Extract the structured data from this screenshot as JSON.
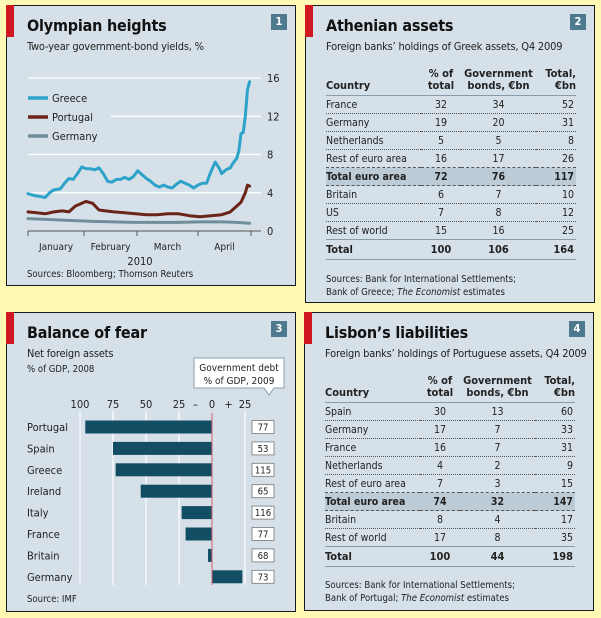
{
  "chart_data": [
    {
      "type": "line",
      "number": "1",
      "title": "Olympian heights",
      "subtitle": "Two-year government-bond yields, %",
      "xlabel": "2010",
      "x_tick_labels": [
        "January",
        "February",
        "March",
        "April"
      ],
      "y_ticks": [
        0,
        4,
        8,
        12,
        16
      ],
      "ylim": [
        0,
        16
      ],
      "grid": true,
      "legend": "top-left",
      "source": "Sources: Bloomberg; Thomson Reuters",
      "x_note": "approximate daily observations, Jan 1 to late April 2010 (index 0-100)",
      "series": [
        {
          "name": "Greece",
          "color": "#2ea3c9",
          "points": [
            [
              0,
              3.9
            ],
            [
              3,
              3.7
            ],
            [
              6,
              3.6
            ],
            [
              8,
              3.5
            ],
            [
              10,
              4.0
            ],
            [
              12,
              4.3
            ],
            [
              15,
              4.4
            ],
            [
              17,
              5.0
            ],
            [
              19,
              5.5
            ],
            [
              21,
              5.4
            ],
            [
              23,
              6.0
            ],
            [
              25,
              6.7
            ],
            [
              27,
              6.5
            ],
            [
              29,
              6.5
            ],
            [
              31,
              6.4
            ],
            [
              33,
              6.6
            ],
            [
              35,
              6.0
            ],
            [
              37,
              5.2
            ],
            [
              39,
              5.1
            ],
            [
              41,
              5.4
            ],
            [
              43,
              5.4
            ],
            [
              45,
              5.6
            ],
            [
              47,
              5.4
            ],
            [
              49,
              5.7
            ],
            [
              51,
              6.3
            ],
            [
              53,
              5.9
            ],
            [
              55,
              5.5
            ],
            [
              57,
              5.2
            ],
            [
              59,
              4.8
            ],
            [
              61,
              4.6
            ],
            [
              63,
              4.8
            ],
            [
              65,
              4.6
            ],
            [
              67,
              4.5
            ],
            [
              69,
              4.9
            ],
            [
              71,
              5.2
            ],
            [
              73,
              5.0
            ],
            [
              75,
              4.8
            ],
            [
              77,
              4.5
            ],
            [
              79,
              4.8
            ],
            [
              81,
              5.0
            ],
            [
              83,
              5.0
            ],
            [
              85,
              6.2
            ],
            [
              87,
              7.2
            ],
            [
              89,
              6.5
            ],
            [
              90,
              6.0
            ],
            [
              92,
              6.4
            ],
            [
              94,
              6.6
            ],
            [
              95,
              7.0
            ],
            [
              97,
              7.6
            ],
            [
              98,
              8.4
            ],
            [
              99,
              10.2
            ],
            [
              100,
              10.3
            ],
            [
              101,
              12.0
            ],
            [
              102,
              14.8
            ],
            [
              103,
              15.6
            ]
          ]
        },
        {
          "name": "Portugal",
          "color": "#6b2418",
          "points": [
            [
              0,
              2.0
            ],
            [
              4,
              1.9
            ],
            [
              8,
              1.8
            ],
            [
              12,
              2.0
            ],
            [
              16,
              2.1
            ],
            [
              19,
              2.0
            ],
            [
              22,
              2.6
            ],
            [
              25,
              2.9
            ],
            [
              27,
              3.1
            ],
            [
              30,
              2.9
            ],
            [
              33,
              2.2
            ],
            [
              36,
              2.1
            ],
            [
              40,
              2.0
            ],
            [
              45,
              1.9
            ],
            [
              50,
              1.8
            ],
            [
              55,
              1.7
            ],
            [
              60,
              1.7
            ],
            [
              65,
              1.8
            ],
            [
              70,
              1.8
            ],
            [
              75,
              1.6
            ],
            [
              80,
              1.5
            ],
            [
              85,
              1.6
            ],
            [
              90,
              1.7
            ],
            [
              94,
              2.0
            ],
            [
              97,
              2.6
            ],
            [
              99,
              3.0
            ],
            [
              101,
              4.0
            ],
            [
              102,
              4.8
            ],
            [
              103,
              4.7
            ]
          ]
        },
        {
          "name": "Germany",
          "color": "#6f8e9a",
          "points": [
            [
              0,
              1.3
            ],
            [
              10,
              1.2
            ],
            [
              20,
              1.1
            ],
            [
              30,
              1.0
            ],
            [
              40,
              0.95
            ],
            [
              50,
              0.9
            ],
            [
              60,
              0.9
            ],
            [
              70,
              0.9
            ],
            [
              80,
              0.95
            ],
            [
              90,
              0.95
            ],
            [
              97,
              0.9
            ],
            [
              103,
              0.8
            ]
          ]
        }
      ]
    },
    {
      "type": "table",
      "number": "2",
      "title": "Athenian assets",
      "subtitle": "Foreign banks’ holdings of Greek assets, Q4 2009",
      "columns": [
        "Country",
        "% of total",
        "Government bonds, €bn",
        "Total, €bn"
      ],
      "rows": [
        [
          "France",
          "32",
          "34",
          "52"
        ],
        [
          "Germany",
          "19",
          "20",
          "31"
        ],
        [
          "Netherlands",
          "5",
          "5",
          "8"
        ],
        [
          "Rest of euro area",
          "16",
          "17",
          "26"
        ],
        [
          "Total euro area",
          "72",
          "76",
          "117"
        ],
        [
          "Britain",
          "6",
          "7",
          "10"
        ],
        [
          "US",
          "7",
          "8",
          "12"
        ],
        [
          "Rest of world",
          "15",
          "16",
          "25"
        ],
        [
          "Total",
          "100",
          "106",
          "164"
        ]
      ],
      "source_line1": "Sources: Bank for International Settlements;",
      "source_line2_pre": "Bank of Greece; ",
      "source_line2_em": "The Economist",
      "source_line2_post": " estimates"
    },
    {
      "type": "bar",
      "number": "3",
      "title": "Balance of fear",
      "subtitle": "Net foreign assets",
      "subtitle2": "% of GDP, 2008",
      "callout": [
        "Government debt",
        "% of GDP, 2009"
      ],
      "x_tick_labels": [
        "100",
        "75",
        "50",
        "25",
        "–",
        "0",
        "+",
        "25"
      ],
      "xlim": [
        -100,
        25
      ],
      "categories": [
        "Portugal",
        "Spain",
        "Greece",
        "Ireland",
        "Italy",
        "France",
        "Britain",
        "Germany"
      ],
      "values": [
        -96,
        -75,
        -73,
        -54,
        -23,
        -20,
        -3,
        23
      ],
      "debt_values": [
        "77",
        "53",
        "115",
        "65",
        "116",
        "77",
        "68",
        "73"
      ],
      "bar_color": "#134d63",
      "source": "Source: IMF"
    },
    {
      "type": "table",
      "number": "4",
      "title": "Lisbon’s liabilities",
      "subtitle": "Foreign banks’ holdings of Portuguese assets, Q4 2009",
      "columns": [
        "Country",
        "% of total",
        "Government bonds, €bn",
        "Total, €bn"
      ],
      "rows": [
        [
          "Spain",
          "30",
          "13",
          "60"
        ],
        [
          "Germany",
          "17",
          "7",
          "33"
        ],
        [
          "France",
          "16",
          "7",
          "31"
        ],
        [
          "Netherlands",
          "4",
          "2",
          "9"
        ],
        [
          "Rest of euro area",
          "7",
          "3",
          "15"
        ],
        [
          "Total  euro area",
          "74",
          "32",
          "147"
        ],
        [
          "Britain",
          "8",
          "4",
          "17"
        ],
        [
          "Rest of world",
          "17",
          "8",
          "35"
        ],
        [
          "Total",
          "100",
          "44",
          "198"
        ]
      ],
      "source_line1": "Sources: Bank for International Settlements;",
      "source_line2_pre": "Bank of Portugal; ",
      "source_line2_em": "The Economist",
      "source_line2_post": " estimates"
    }
  ],
  "colors": {
    "background": "#fdf9b4",
    "panel": "#d5e0e8",
    "accent_red": "#d01820",
    "badge": "#4d7a8e"
  }
}
